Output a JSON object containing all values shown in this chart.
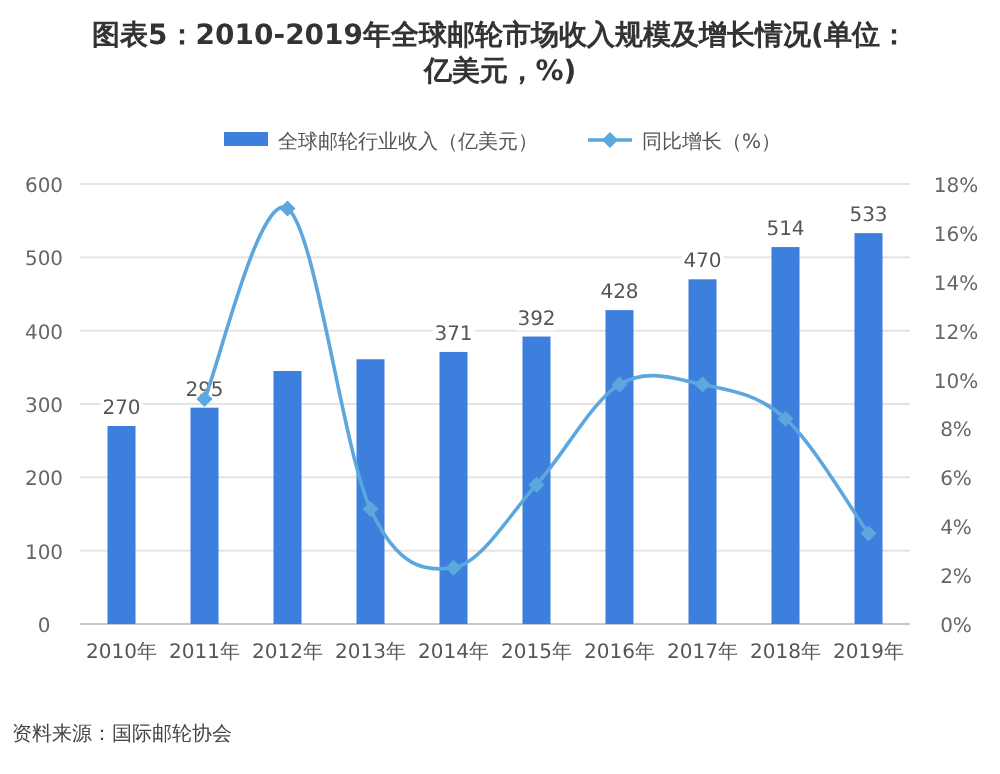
{
  "chart_data": {
    "type": "bar",
    "title": "图表5：2010-2019年全球邮轮市场收入规模及增长情况(单位：亿美元，%)",
    "categories": [
      "2010年",
      "2011年",
      "2012年",
      "2013年",
      "2014年",
      "2015年",
      "2016年",
      "2017年",
      "2018年",
      "2019年"
    ],
    "series": [
      {
        "name": "全球邮轮行业收入（亿美元）",
        "color": "#3d7fdc",
        "values": [
          270,
          295,
          345,
          361,
          371,
          392,
          428,
          470,
          514,
          533
        ],
        "value_labels": [
          "270",
          "295",
          null,
          null,
          "371",
          "392",
          "428",
          "470",
          "514",
          "533"
        ]
      },
      {
        "name": "同比增长（%）",
        "type": "line",
        "axis": "y2",
        "color": "#5ba7de",
        "values": [
          null,
          9.2,
          17.0,
          4.7,
          2.3,
          5.7,
          9.8,
          9.8,
          8.4,
          3.7
        ]
      }
    ],
    "ylim": [
      0,
      600
    ],
    "yticks": [
      0,
      100,
      200,
      300,
      400,
      500,
      600
    ],
    "y2lim": [
      0,
      18
    ],
    "y2ticks": [
      {
        "value": 0,
        "label": "0%"
      },
      {
        "value": 2,
        "label": "2%"
      },
      {
        "value": 4,
        "label": "4%"
      },
      {
        "value": 6,
        "label": "6%"
      },
      {
        "value": 8,
        "label": "8%"
      },
      {
        "value": 10,
        "label": "10%"
      },
      {
        "value": 12,
        "label": "12%"
      },
      {
        "value": 14,
        "label": "14%"
      },
      {
        "value": 16,
        "label": "16%"
      },
      {
        "value": 18,
        "label": "18%"
      }
    ],
    "grid": "y",
    "legend": "top",
    "marker": "diamond",
    "annotations": [
      "资料来源：国际邮轮协会"
    ]
  }
}
